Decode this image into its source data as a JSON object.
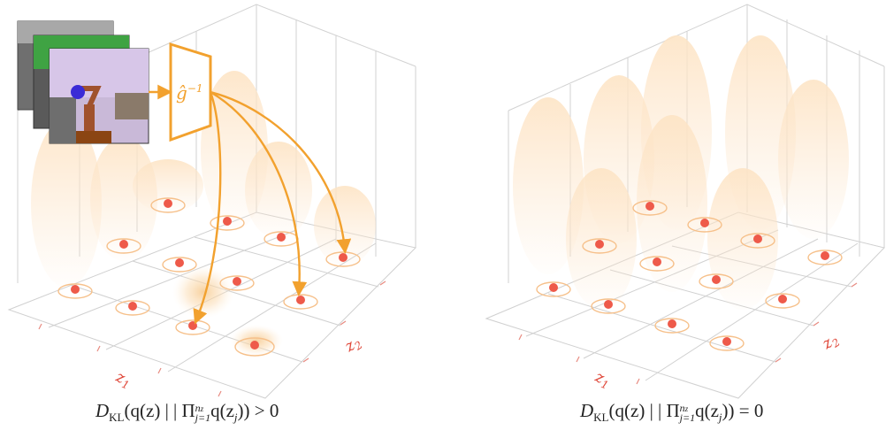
{
  "panels": [
    {
      "id": "left",
      "axis_z1": "z",
      "axis_z1_sub": "1",
      "axis_z2": "z",
      "axis_z2_sub": "2",
      "caption": {
        "prefix": "D",
        "prefix_sub": "KL",
        "body_a": "(q(z) | | Π",
        "prod_sup": "n",
        "prod_sup_sub": "z",
        "prod_sub": "j=1",
        "body_b": "q(z",
        "body_sub": "j",
        "body_c": ")) > 0"
      }
    },
    {
      "id": "right",
      "axis_z1": "z",
      "axis_z1_sub": "1",
      "axis_z2": "z",
      "axis_z2_sub": "2",
      "caption": {
        "prefix": "D",
        "prefix_sub": "KL",
        "body_a": "(q(z) | | Π",
        "prod_sup": "n",
        "prod_sup_sub": "z",
        "prod_sub": "j=1",
        "body_b": "q(z",
        "body_sub": "j",
        "body_c": ")) = 0"
      }
    }
  ],
  "encoder_label": "ĝ",
  "encoder_sup": "−1",
  "colors": {
    "accent": "#f2a12e",
    "point": "#ee5a4a",
    "axis_label": "#e0483a",
    "grid": "#c8c8c8",
    "wall": "#d6d6d6"
  }
}
